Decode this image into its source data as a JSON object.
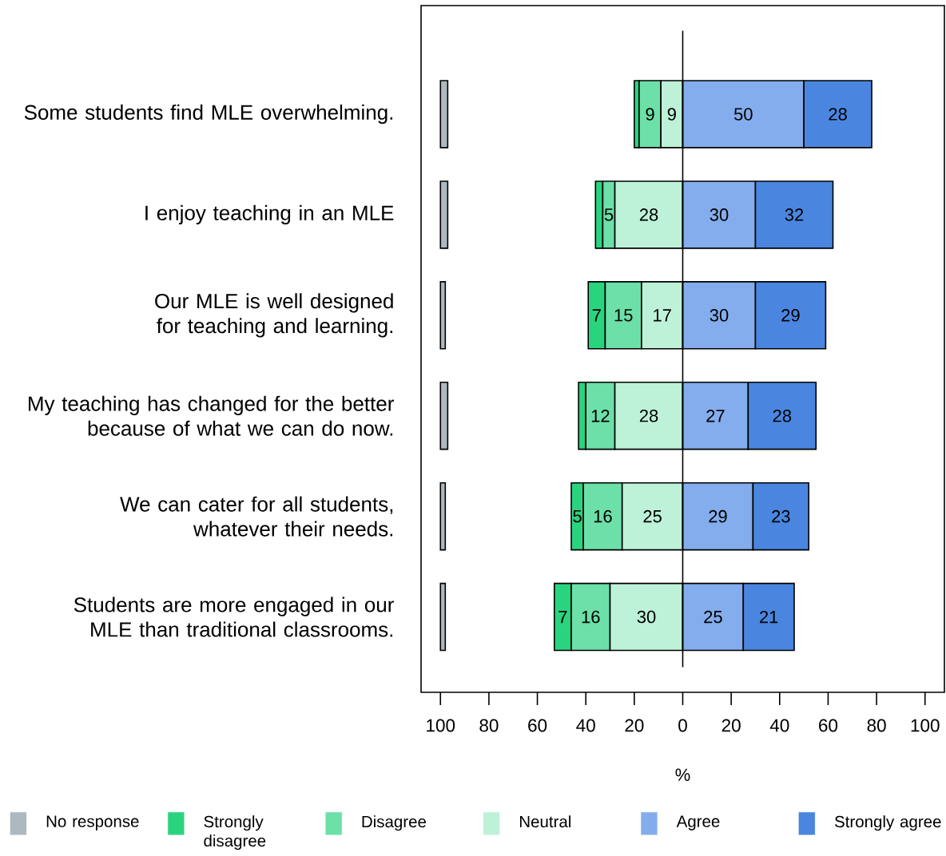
{
  "chart_data": {
    "type": "bar",
    "orientation": "horizontal",
    "legend": "bottom",
    "categories": [
      "Some students find MLE overwhelming.",
      "I enjoy teaching in an MLE",
      "Our MLE is well designed for teaching and learning.",
      "My teaching has changed for the better because of what we can do now.",
      "We can cater for all students, whatever their needs.",
      "Students are more engaged in our MLE than traditional classrooms."
    ],
    "series": [
      {
        "name": "No response",
        "color": "#aeb8bf",
        "values": [
          3,
          3,
          2,
          3,
          2,
          2
        ],
        "base": [
          -100,
          -100,
          -100,
          -100,
          -100,
          -100
        ]
      },
      {
        "name": "Strongly disagree",
        "color": "#2ad47f",
        "values": [
          2,
          3,
          7,
          3,
          5,
          7
        ],
        "base": [
          -20,
          -36,
          -39,
          -43,
          -46,
          -53
        ],
        "value_labels": [
          null,
          null,
          "7",
          null,
          "5",
          "7"
        ]
      },
      {
        "name": "Disagree",
        "color": "#6ce0a8",
        "values": [
          9,
          5,
          15,
          12,
          16,
          16
        ],
        "base": [
          -18,
          -33,
          -32,
          -40,
          -41,
          -46
        ],
        "value_labels": [
          "9",
          "5",
          "15",
          "12",
          "16",
          "16"
        ]
      },
      {
        "name": "Neutral",
        "color": "#bdf2d8",
        "values": [
          9,
          28,
          17,
          28,
          25,
          30
        ],
        "base": [
          -9,
          -28,
          -17,
          -28,
          -25,
          -30
        ],
        "value_labels": [
          "9",
          "28",
          "17",
          "28",
          "25",
          "30"
        ]
      },
      {
        "name": "Agree",
        "color": "#83adec",
        "values": [
          50,
          30,
          30,
          27,
          29,
          25
        ],
        "base": [
          0,
          0,
          0,
          0,
          0,
          0
        ],
        "value_labels": [
          "50",
          "30",
          "30",
          "27",
          "29",
          "25"
        ]
      },
      {
        "name": "Strongly agree",
        "color": "#4a86e0",
        "values": [
          28,
          32,
          29,
          28,
          23,
          21
        ],
        "base": [
          50,
          30,
          30,
          27,
          29,
          25
        ],
        "value_labels": [
          "28",
          "32",
          "29",
          "28",
          "23",
          "21"
        ]
      }
    ],
    "xlabel": "%",
    "xlim": [
      -108,
      108
    ],
    "xticks": [
      {
        "value": -100,
        "label": "100"
      },
      {
        "value": -80,
        "label": "80"
      },
      {
        "value": -60,
        "label": "60"
      },
      {
        "value": -40,
        "label": "40"
      },
      {
        "value": -20,
        "label": "20"
      },
      0,
      20,
      40,
      60,
      80,
      100
    ],
    "ref_lines": [
      {
        "axis": "x",
        "value": 0
      }
    ]
  }
}
